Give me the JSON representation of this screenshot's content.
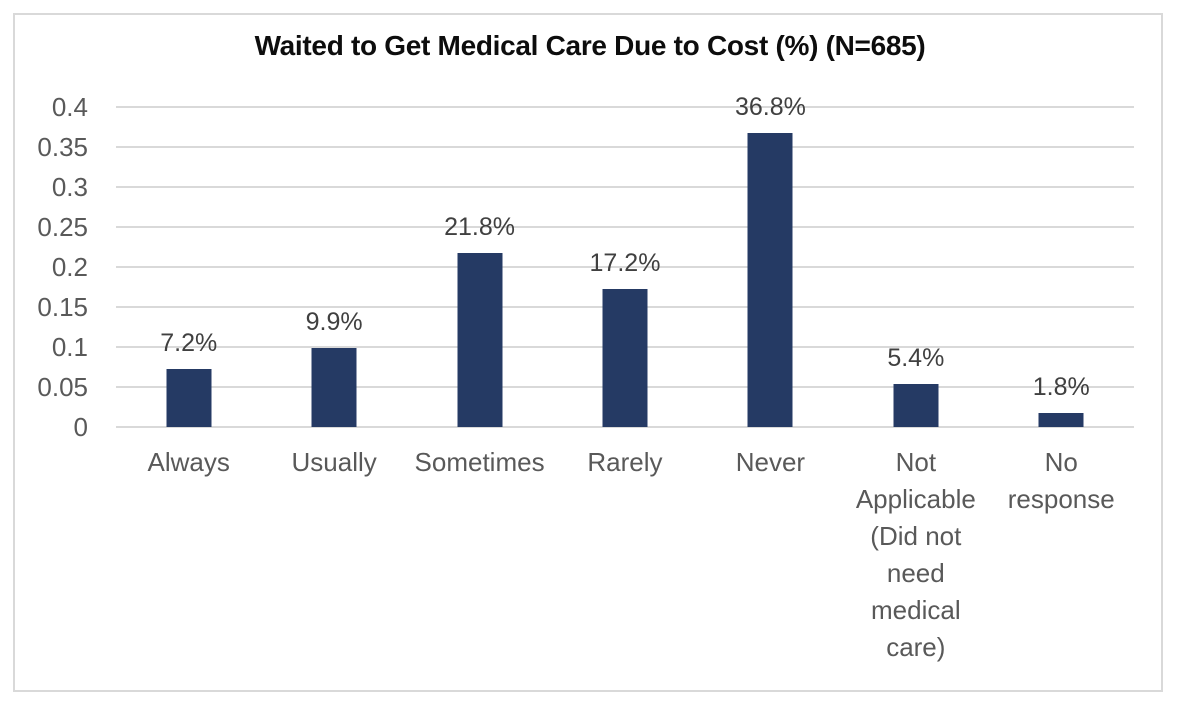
{
  "chart_data": {
    "type": "bar",
    "title": "Waited to Get Medical Care Due to Cost (%) (N=685)",
    "xlabel": "",
    "ylabel": "",
    "categories": [
      "Always",
      "Usually",
      "Sometimes",
      "Rarely",
      "Never",
      "Not Applicable (Did not need medical care)",
      "No response"
    ],
    "category_label_lines": [
      [
        "Always"
      ],
      [
        "Usually"
      ],
      [
        "Sometimes"
      ],
      [
        "Rarely"
      ],
      [
        "Never"
      ],
      [
        "Not",
        "Applicable",
        "(Did not",
        "need",
        "medical",
        "care)"
      ],
      [
        "No",
        "response"
      ]
    ],
    "values": [
      0.072,
      0.099,
      0.218,
      0.172,
      0.368,
      0.054,
      0.018
    ],
    "data_labels": [
      "7.2%",
      "9.9%",
      "21.8%",
      "17.2%",
      "36.8%",
      "5.4%",
      "1.8%"
    ],
    "y_tick_values": [
      0,
      0.05,
      0.1,
      0.15,
      0.2,
      0.25,
      0.3,
      0.35,
      0.4
    ],
    "y_tick_labels": [
      "0",
      "0.05",
      "0.1",
      "0.15",
      "0.2",
      "0.25",
      "0.3",
      "0.35",
      "0.4"
    ],
    "ylim": [
      0,
      0.4
    ],
    "grid": true,
    "legend_position": "none",
    "colors": {
      "bar": "#253A64",
      "gridline": "#D9D9D9",
      "axis_labels": "#595959",
      "data_labels": "#404040",
      "title": "#0D0D0D",
      "frame_border": "#D9D9D9",
      "background": "#FFFFFF"
    }
  }
}
